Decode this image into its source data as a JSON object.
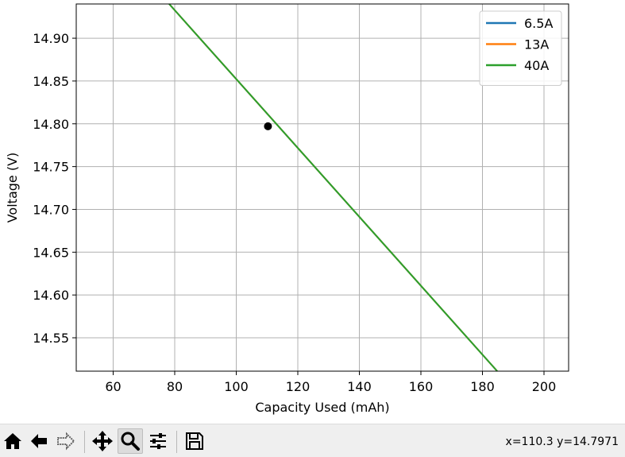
{
  "chart_data": {
    "type": "line",
    "xlabel": "Capacity Used (mAh)",
    "ylabel": "Voltage (V)",
    "xlim": [
      48,
      208
    ],
    "ylim": [
      14.511,
      14.94
    ],
    "x_ticks": [
      60,
      80,
      100,
      120,
      140,
      160,
      180,
      200
    ],
    "y_ticks": [
      14.55,
      14.6,
      14.65,
      14.7,
      14.75,
      14.8,
      14.85,
      14.9
    ],
    "x_tick_labels": [
      "60",
      "80",
      "100",
      "120",
      "140",
      "160",
      "180",
      "200"
    ],
    "y_tick_labels": [
      "14.55",
      "14.60",
      "14.65",
      "14.70",
      "14.75",
      "14.80",
      "14.85",
      "14.90"
    ],
    "grid": true,
    "legend_position": "top-right",
    "series": [
      {
        "name": "6.5A",
        "color": "#1f77b4",
        "x": [
          78.2,
          184.8
        ],
        "y": [
          14.94,
          14.511
        ]
      },
      {
        "name": "13A",
        "color": "#ff7f0e",
        "x": [
          78.2,
          184.8
        ],
        "y": [
          14.94,
          14.511
        ]
      },
      {
        "name": "40A",
        "color": "#2ca02c",
        "x": [
          78.2,
          184.8
        ],
        "y": [
          14.94,
          14.511
        ]
      }
    ],
    "marker": {
      "x": 110.3,
      "y": 14.7971,
      "color": "#000000"
    }
  },
  "toolbar": {
    "buttons": [
      {
        "name": "home-button",
        "icon": "home-icon"
      },
      {
        "name": "back-button",
        "icon": "arrow-left-icon"
      },
      {
        "name": "forward-button",
        "icon": "arrow-right-icon"
      },
      {
        "name": "pan-button",
        "icon": "move-icon"
      },
      {
        "name": "zoom-button",
        "icon": "magnifier-icon",
        "active": true
      },
      {
        "name": "configure-subplots-button",
        "icon": "sliders-icon"
      },
      {
        "name": "save-button",
        "icon": "floppy-disk-icon"
      }
    ]
  },
  "status": {
    "coordinates": "x=110.3 y=14.7971"
  }
}
